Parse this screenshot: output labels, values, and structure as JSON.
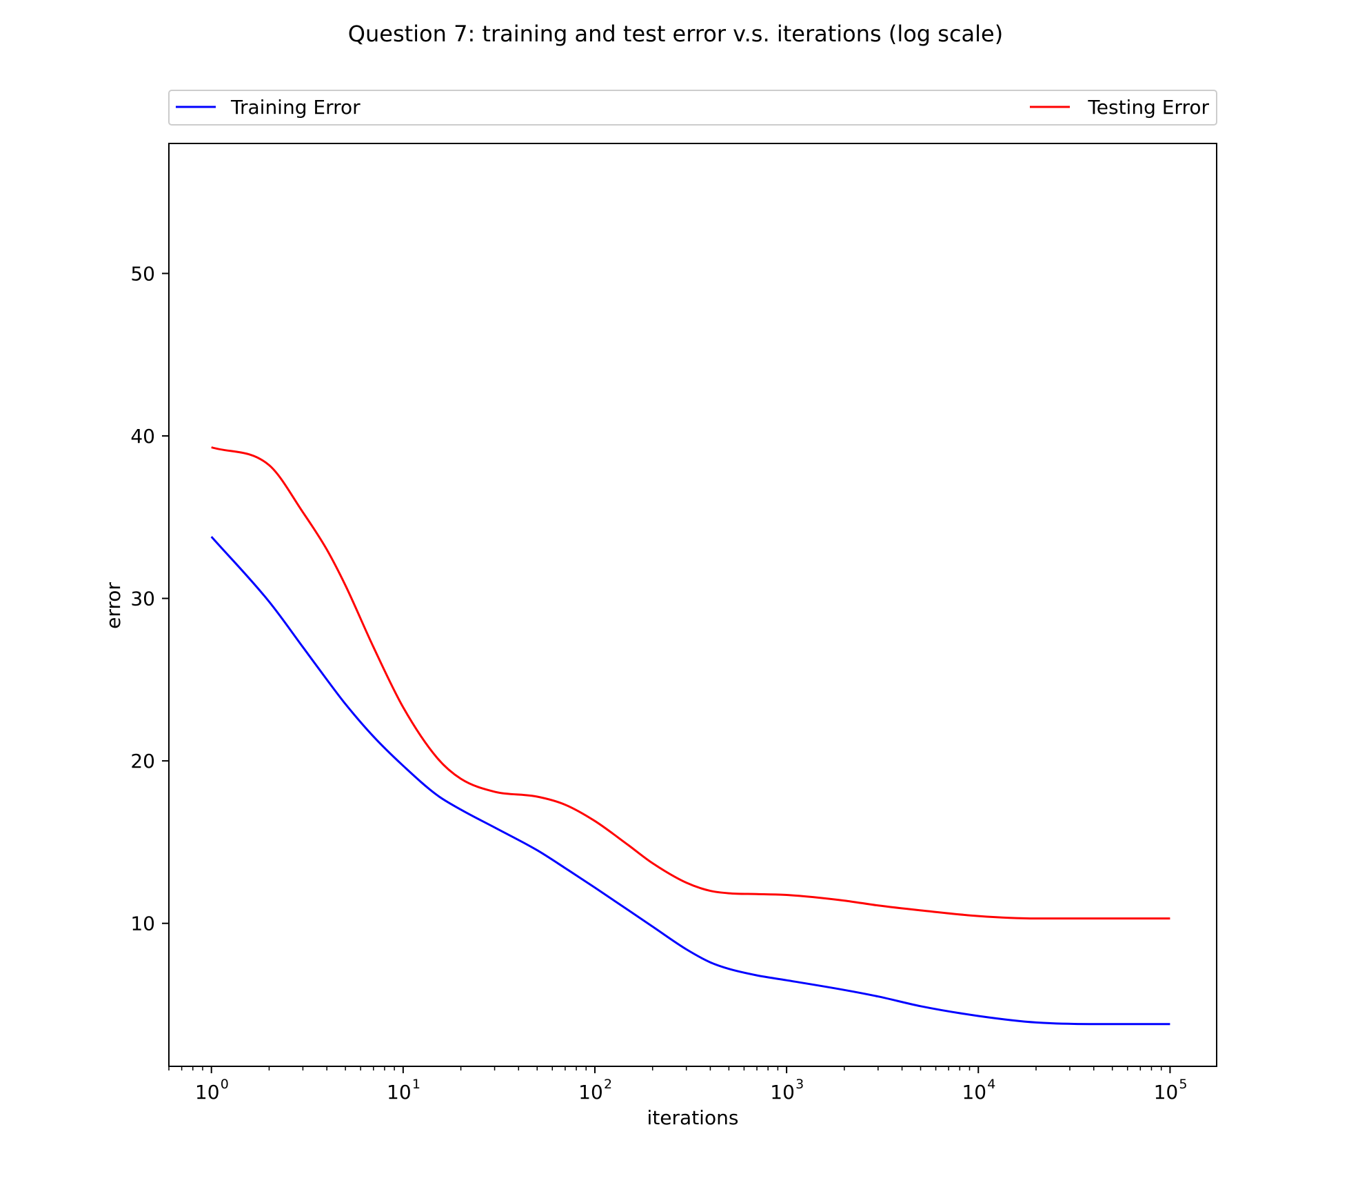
{
  "chart_data": {
    "type": "line",
    "title": "Question 7: training and test error v.s. iterations (log scale)",
    "xlabel": "iterations",
    "ylabel": "error",
    "xscale": "log",
    "xlim": [
      0.6,
      175000
    ],
    "ylim": [
      1.2,
      58
    ],
    "xticks": [
      {
        "value": 1,
        "base": "10",
        "exp": "0"
      },
      {
        "value": 10,
        "base": "10",
        "exp": "1"
      },
      {
        "value": 100,
        "base": "10",
        "exp": "2"
      },
      {
        "value": 1000,
        "base": "10",
        "exp": "3"
      },
      {
        "value": 10000,
        "base": "10",
        "exp": "4"
      },
      {
        "value": 100000,
        "base": "10",
        "exp": "5"
      }
    ],
    "yticks": [
      10,
      20,
      30,
      40,
      50
    ],
    "grid": false,
    "legend": {
      "placement": "top, above plot, expanded"
    },
    "series": [
      {
        "name": "Training Error",
        "color": "#0000ff",
        "points": [
          [
            1,
            33.8
          ],
          [
            2,
            29.8
          ],
          [
            3,
            27.0
          ],
          [
            4,
            25.0
          ],
          [
            5,
            23.5
          ],
          [
            7,
            21.5
          ],
          [
            10,
            19.7
          ],
          [
            15,
            17.9
          ],
          [
            20,
            17.0
          ],
          [
            30,
            15.9
          ],
          [
            50,
            14.5
          ],
          [
            70,
            13.4
          ],
          [
            100,
            12.2
          ],
          [
            150,
            10.8
          ],
          [
            200,
            9.8
          ],
          [
            300,
            8.4
          ],
          [
            400,
            7.6
          ],
          [
            500,
            7.2
          ],
          [
            700,
            6.8
          ],
          [
            1000,
            6.5
          ],
          [
            2000,
            5.9
          ],
          [
            3000,
            5.5
          ],
          [
            5000,
            4.9
          ],
          [
            10000,
            4.3
          ],
          [
            20000,
            3.9
          ],
          [
            50000,
            3.8
          ],
          [
            100000,
            3.8
          ]
        ]
      },
      {
        "name": "Testing Error",
        "color": "#ff0000",
        "points": [
          [
            1,
            39.3
          ],
          [
            2,
            38.2
          ],
          [
            3,
            35.3
          ],
          [
            4,
            33.0
          ],
          [
            5,
            30.8
          ],
          [
            7,
            27.0
          ],
          [
            10,
            23.3
          ],
          [
            15,
            20.2
          ],
          [
            20,
            18.9
          ],
          [
            30,
            18.1
          ],
          [
            50,
            17.8
          ],
          [
            70,
            17.3
          ],
          [
            100,
            16.3
          ],
          [
            150,
            14.8
          ],
          [
            200,
            13.7
          ],
          [
            300,
            12.5
          ],
          [
            400,
            12.0
          ],
          [
            500,
            11.85
          ],
          [
            700,
            11.8
          ],
          [
            1000,
            11.75
          ],
          [
            2000,
            11.4
          ],
          [
            3000,
            11.1
          ],
          [
            5000,
            10.8
          ],
          [
            10000,
            10.45
          ],
          [
            20000,
            10.3
          ],
          [
            50000,
            10.3
          ],
          [
            100000,
            10.3
          ]
        ]
      }
    ]
  }
}
